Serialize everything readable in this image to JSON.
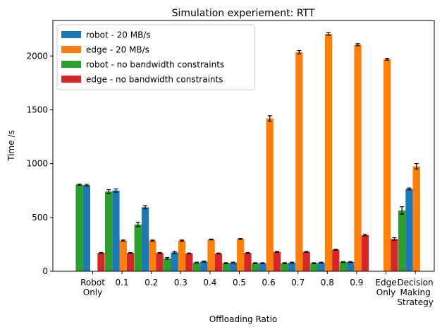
{
  "chart_data": {
    "type": "bar",
    "title": "Simulation experiement: RTT",
    "xlabel": "Offloading Ratio",
    "ylabel": "Time /s",
    "ylim": [
      0,
      2330
    ],
    "yticks": [
      0,
      500,
      1000,
      1500,
      2000
    ],
    "grid": false,
    "legend_position": "top-left",
    "categories": [
      [
        "Robot",
        "Only"
      ],
      [
        "0.1"
      ],
      [
        "0.2"
      ],
      [
        "0.3"
      ],
      [
        "0.4"
      ],
      [
        "0.5"
      ],
      [
        "0.6"
      ],
      [
        "0.7"
      ],
      [
        "0.8"
      ],
      [
        "0.9"
      ],
      [
        "Edge",
        "Only"
      ],
      [
        "Decision",
        "Making",
        "Strategy"
      ]
    ],
    "series": [
      {
        "name": "robot - 20 MB/s",
        "color": "#1f77b4",
        "values": [
          800,
          750,
          595,
          175,
          90,
          80,
          75,
          80,
          80,
          85,
          0,
          765
        ],
        "errors": [
          8,
          15,
          15,
          10,
          5,
          4,
          4,
          4,
          4,
          4,
          0,
          8
        ]
      },
      {
        "name": "edge  - 20 MB/s",
        "color": "#ff7f0e",
        "values": [
          0,
          285,
          285,
          285,
          295,
          300,
          1420,
          2035,
          2205,
          2105,
          1970,
          975
        ],
        "errors": [
          0,
          5,
          5,
          5,
          4,
          4,
          25,
          15,
          12,
          10,
          8,
          25
        ]
      },
      {
        "name": "robot - no bandwidth constraints",
        "color": "#2ca02c",
        "values": [
          805,
          740,
          435,
          120,
          80,
          75,
          75,
          75,
          75,
          85,
          0,
          565
        ],
        "errors": [
          5,
          18,
          20,
          8,
          4,
          4,
          4,
          4,
          4,
          4,
          0,
          35
        ]
      },
      {
        "name": "edge  - no bandwidth constraints",
        "color": "#d62728",
        "values": [
          170,
          170,
          170,
          165,
          165,
          170,
          180,
          180,
          200,
          335,
          300,
          0
        ],
        "errors": [
          4,
          4,
          4,
          4,
          4,
          4,
          4,
          4,
          4,
          8,
          12,
          0
        ]
      }
    ]
  }
}
